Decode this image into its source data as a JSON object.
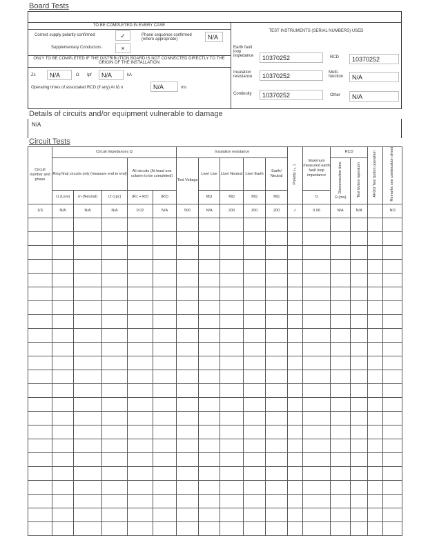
{
  "board_tests": {
    "title": "Board Tests",
    "every_case_heading": "TO BE COMPLETED IN EVERY CASE",
    "polarity_label": "Correct supply polarity confirmed",
    "polarity_value": "✓",
    "supplementary_label": "Supplementary Conductors",
    "supplementary_value": "×",
    "phase_seq_label": "Phase sequence confirmed (where appropriate)",
    "phase_seq_value": "N/A",
    "not_connected_heading": "ONLY TO BE COMPLETED IF THE DISTRIBUTION BOARD IS NOT CONNECTED DIRECTLY TO THE ORIGIN OF THE INSTALLATION",
    "zs_label": "Zs",
    "zs_value": "N/A",
    "zs_unit": "Ω",
    "ipf_label": "Ipf",
    "ipf_value": "N/A",
    "ipf_unit": "kA",
    "rcd_time_label": "Operating times of associated RCD (if any) At IΔ n",
    "rcd_time_value": "N/A",
    "rcd_time_unit": "ms",
    "instruments_heading": "TEST INSTRUMENTS (SERIAL NUMBERS) USED",
    "instruments": {
      "efli_label": "Earth fault loop impedance",
      "efli_value": "10370252",
      "rcd_label": "RCD",
      "rcd_value": "10370252",
      "ir_label": "Insulation resistance",
      "ir_value": "10370252",
      "multi_label": "Multi-function",
      "multi_value": "N/A",
      "cont_label": "Continuity",
      "cont_value": "10370252",
      "other_label": "Other",
      "other_value": "N/A"
    }
  },
  "details": {
    "title": "Details of circuits and/or equipment vulnerable to damage",
    "value": "N/A"
  },
  "circuit_tests": {
    "title": "Circuit Tests",
    "headers": {
      "circuit": "Circuit number and phase",
      "impedances": "Circuit Impedances Ω",
      "ring": "Ring final circuits only (measure end to end)",
      "all": "All circuits (At least one column to be completed)",
      "r1": "r1 (Line)",
      "rn": "rn (Neutral)",
      "r2": "r2 (cpc)",
      "r1r2": "(R1 + R2)",
      "R2": "(R2)",
      "insulation": "Insulation resistance",
      "tv": "Test Voltage",
      "ll": "Live/ Live",
      "ln": "Live/ Neutral",
      "le": "Live/ Earth",
      "en": "Earth/ Neutral",
      "mohm": "MΩ",
      "polarity": "Polarity (✓)",
      "max": "Maximum measured earth fault loop impedance",
      "ohm": "Ω",
      "rcd": "RCD",
      "disc": "Disconnection time",
      "disc_unit": "Ω (ms)",
      "testbtn": "Test button operation",
      "afdd": "AFDD Test button operation",
      "remarks": "Remarks see continuation sheet"
    },
    "rows": [
      [
        "1/S",
        "N/A",
        "N/A",
        "N/A",
        "0.02",
        "N/A",
        "500",
        "N/A",
        "200",
        "200",
        "200",
        "✓",
        "0.06",
        "N/A",
        "N/A",
        "",
        "NO"
      ]
    ]
  }
}
